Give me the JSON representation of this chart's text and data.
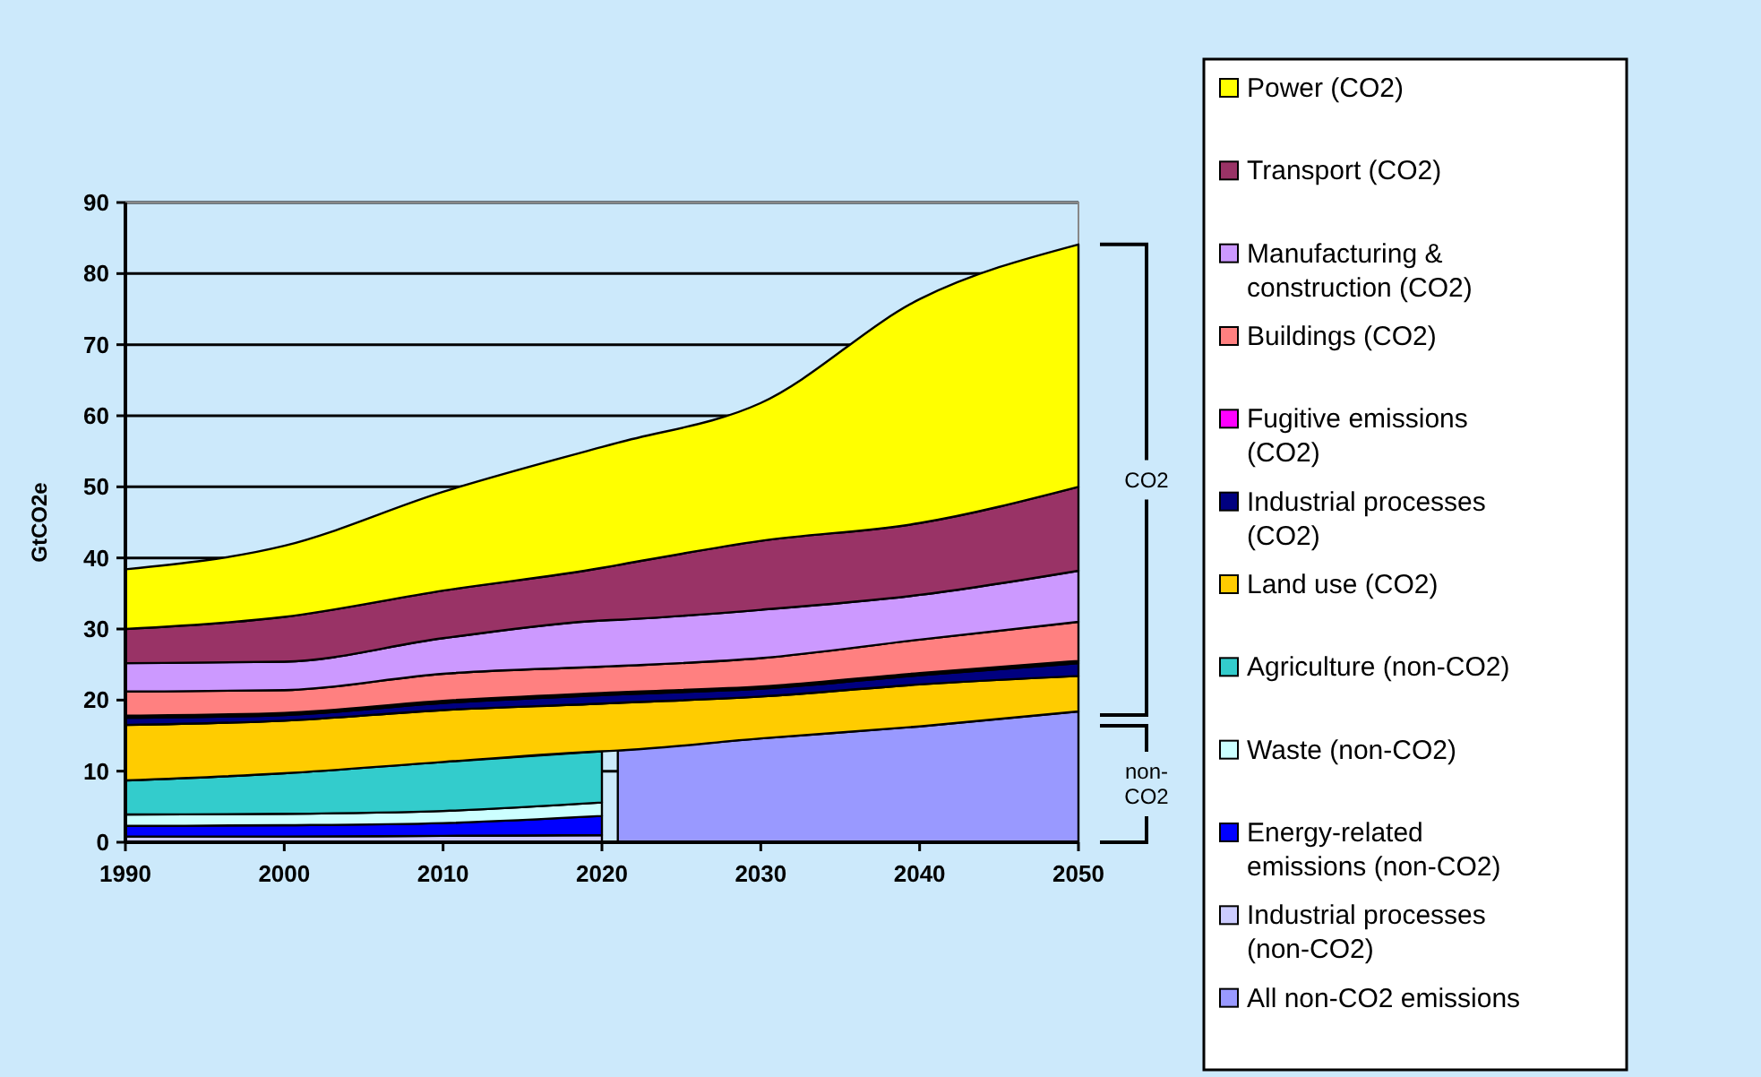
{
  "chart_data": {
    "type": "area",
    "stacked": true,
    "ylabel": "GtCO2e",
    "x": [
      1990,
      2000,
      2010,
      2020,
      2021,
      2030,
      2040,
      2050
    ],
    "xlim": [
      1990,
      2050
    ],
    "xticks": [
      1990,
      2000,
      2010,
      2020,
      2030,
      2040,
      2050
    ],
    "ylim": [
      0,
      90
    ],
    "yticks": [
      0,
      10,
      20,
      30,
      40,
      50,
      60,
      70,
      80,
      90
    ],
    "grid": "y",
    "legend": "right",
    "annotations": [
      "CO2",
      "non-CO2"
    ],
    "series": [
      {
        "name": "All non-CO2 emissions",
        "color": "#9999ff",
        "values": [
          null,
          null,
          null,
          null,
          12.9,
          14.6,
          16.3,
          18.4
        ]
      },
      {
        "name": "Industrial processes (non-CO2)",
        "color": "#ccccff",
        "values": [
          0.8,
          0.8,
          0.9,
          1.0,
          null,
          null,
          null,
          null
        ]
      },
      {
        "name": "Energy-related emissions (non-CO2)",
        "color": "#0000ff",
        "values": [
          1.5,
          1.6,
          1.8,
          2.7,
          null,
          null,
          null,
          null
        ]
      },
      {
        "name": "Waste (non-CO2)",
        "color": "#ccffff",
        "values": [
          1.6,
          1.6,
          1.7,
          1.9,
          null,
          null,
          null,
          null
        ]
      },
      {
        "name": "Agriculture (non-CO2)",
        "color": "#33cccc",
        "values": [
          4.8,
          5.7,
          6.9,
          7.2,
          null,
          null,
          null,
          null
        ]
      },
      {
        "name": "Land use (CO2)",
        "color": "#ffcc00",
        "values": [
          7.8,
          7.4,
          7.3,
          6.7,
          6.7,
          5.9,
          5.9,
          5.0
        ]
      },
      {
        "name": "Industrial processes (CO2)",
        "color": "#000080",
        "values": [
          1.0,
          0.8,
          1.0,
          1.2,
          1.2,
          1.1,
          1.3,
          1.8
        ]
      },
      {
        "name": "Fugitive emissions (CO2)",
        "color": "#ff00ff",
        "values": [
          0.3,
          0.3,
          0.3,
          0.3,
          0.3,
          0.3,
          0.3,
          0.3
        ]
      },
      {
        "name": "Buildings (CO2)",
        "color": "#ff8080",
        "values": [
          3.4,
          3.2,
          3.8,
          3.7,
          3.7,
          4.0,
          4.7,
          5.5
        ]
      },
      {
        "name": "Manufacturing & construction (CO2)",
        "color": "#cc99ff",
        "values": [
          4.0,
          4.0,
          5.0,
          6.5,
          6.5,
          6.8,
          6.3,
          7.2
        ]
      },
      {
        "name": "Transport (CO2)",
        "color": "#993366",
        "values": [
          4.8,
          6.3,
          6.7,
          7.4,
          7.7,
          9.7,
          10.1,
          11.8
        ]
      },
      {
        "name": "Power (CO2)",
        "color": "#ffff00",
        "values": [
          8.4,
          10.0,
          13.9,
          17.0,
          17.2,
          19.4,
          31.5,
          34.1
        ]
      }
    ]
  }
}
